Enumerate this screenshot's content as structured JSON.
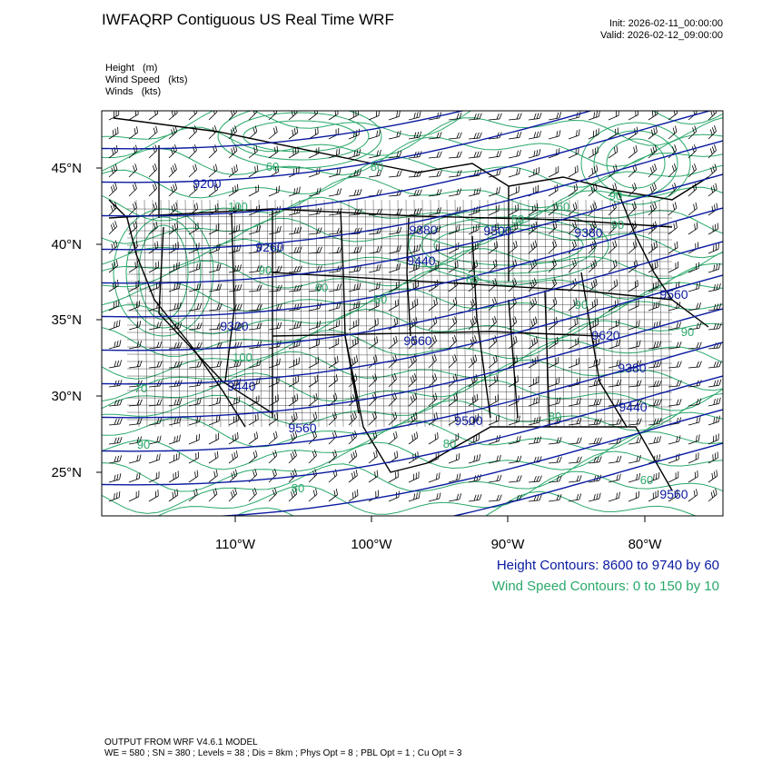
{
  "header": {
    "title": "IWFAQRP Contiguous US Real Time WRF",
    "init": "Init: 2026-02-11_00:00:00",
    "valid": "Valid: 2026-02-12_09:00:00"
  },
  "fields": [
    {
      "label": "Height   (m)"
    },
    {
      "label": "Wind Speed   (kts)"
    },
    {
      "label": "Winds   (kts)"
    }
  ],
  "map": {
    "lat_labels": [
      "45°N",
      "40°N",
      "35°N",
      "30°N",
      "25°N"
    ],
    "lon_labels": [
      "110°W",
      "100°W",
      "90°W",
      "80°W"
    ],
    "height_labels": [
      "9200",
      "9260",
      "9320",
      "9380",
      "9440",
      "9560",
      "9500",
      "9620",
      "9380",
      "9560",
      "9440",
      "9500",
      "9560",
      "9560",
      "9440",
      "9380"
    ],
    "wind_labels": [
      "60",
      "80",
      "90",
      "70",
      "90",
      "100",
      "80",
      "60",
      "90",
      "50",
      "100",
      "90",
      "60",
      "80",
      "90",
      "50",
      "60",
      "90",
      "60",
      "80"
    ],
    "colors": {
      "height_contour": "#0a1aa0",
      "wind_contour": "#2aa86a",
      "barbs": "#000000",
      "borders": "#000000"
    }
  },
  "legend": {
    "height": "Height Contours: 8600 to 9740 by 60",
    "wind": "Wind Speed Contours: 0 to 150 by 10"
  },
  "footer": {
    "line1": "OUTPUT FROM WRF V4.6.1 MODEL",
    "line2": "WE = 580 ; SN = 380 ; Levels = 38 ; Dis = 8km ; Phys Opt = 8 ; PBL Opt = 1 ; Cu Opt = 3"
  }
}
